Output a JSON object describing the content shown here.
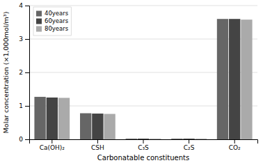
{
  "chart_data": {
    "type": "bar",
    "categories": [
      "Ca(OH)₂",
      "CSH",
      "C₃S",
      "C₂S",
      "CO₂"
    ],
    "series": [
      {
        "name": "40years",
        "color": "#666666",
        "values": [
          1.27,
          0.78,
          0.02,
          0.02,
          3.6
        ]
      },
      {
        "name": "60years",
        "color": "#444444",
        "values": [
          1.25,
          0.77,
          0.02,
          0.02,
          3.6
        ]
      },
      {
        "name": "80years",
        "color": "#aaaaaa",
        "values": [
          1.24,
          0.76,
          0.02,
          0.02,
          3.58
        ]
      }
    ],
    "xlabel": "Carbonatable constituents",
    "ylabel": "Molar concentration (×1,000mol/m³)",
    "ylim": [
      0,
      4
    ],
    "yticks": [
      0,
      1,
      2,
      3,
      4
    ],
    "grid": true,
    "legend": "upper left"
  }
}
